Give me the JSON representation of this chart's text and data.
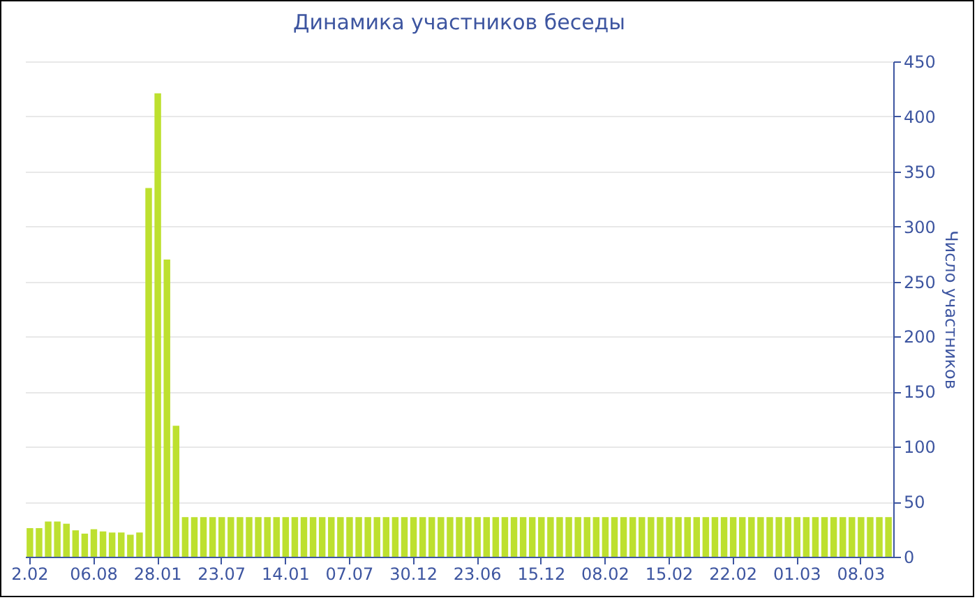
{
  "chart_data": {
    "type": "bar",
    "title": "Динамика участников беседы",
    "ylabel": "Число участников",
    "categories": [
      "2.02",
      null,
      null,
      null,
      null,
      null,
      null,
      "06.08",
      null,
      null,
      null,
      null,
      null,
      null,
      "28.01",
      null,
      null,
      null,
      null,
      null,
      null,
      "23.07",
      null,
      null,
      null,
      null,
      null,
      null,
      "14.01",
      null,
      null,
      null,
      null,
      null,
      null,
      "07.07",
      null,
      null,
      null,
      null,
      null,
      null,
      "30.12",
      null,
      null,
      null,
      null,
      null,
      null,
      "23.06",
      null,
      null,
      null,
      null,
      null,
      null,
      "15.12",
      null,
      null,
      null,
      null,
      null,
      null,
      "08.02",
      null,
      null,
      null,
      null,
      null,
      null,
      "15.02",
      null,
      null,
      null,
      null,
      null,
      null,
      "22.02",
      null,
      null,
      null,
      null,
      null,
      null,
      "01.03",
      null,
      null,
      null,
      null,
      null,
      null,
      "08.03",
      null,
      null,
      null
    ],
    "values": [
      26,
      26,
      32,
      32,
      30,
      24,
      21,
      25,
      23,
      22,
      22,
      20,
      22,
      335,
      421,
      270,
      119,
      36,
      36,
      36,
      36,
      36,
      36,
      36,
      36,
      36,
      36,
      36,
      36,
      36,
      36,
      36,
      36,
      36,
      36,
      36,
      36,
      36,
      36,
      36,
      36,
      36,
      36,
      36,
      36,
      36,
      36,
      36,
      36,
      36,
      36,
      36,
      36,
      36,
      36,
      36,
      36,
      36,
      36,
      36,
      36,
      36,
      36,
      36,
      36,
      36,
      36,
      36,
      36,
      36,
      36,
      36,
      36,
      36,
      36,
      36,
      36,
      36,
      36,
      36,
      36,
      36,
      36,
      36,
      36,
      36,
      36,
      36,
      36,
      36,
      36,
      36,
      36,
      36,
      36
    ],
    "color": "#bde02f",
    "ylim": [
      0,
      450
    ],
    "yticks": [
      0,
      50,
      100,
      150,
      200,
      250,
      300,
      350,
      400,
      450
    ],
    "grid": "y"
  }
}
